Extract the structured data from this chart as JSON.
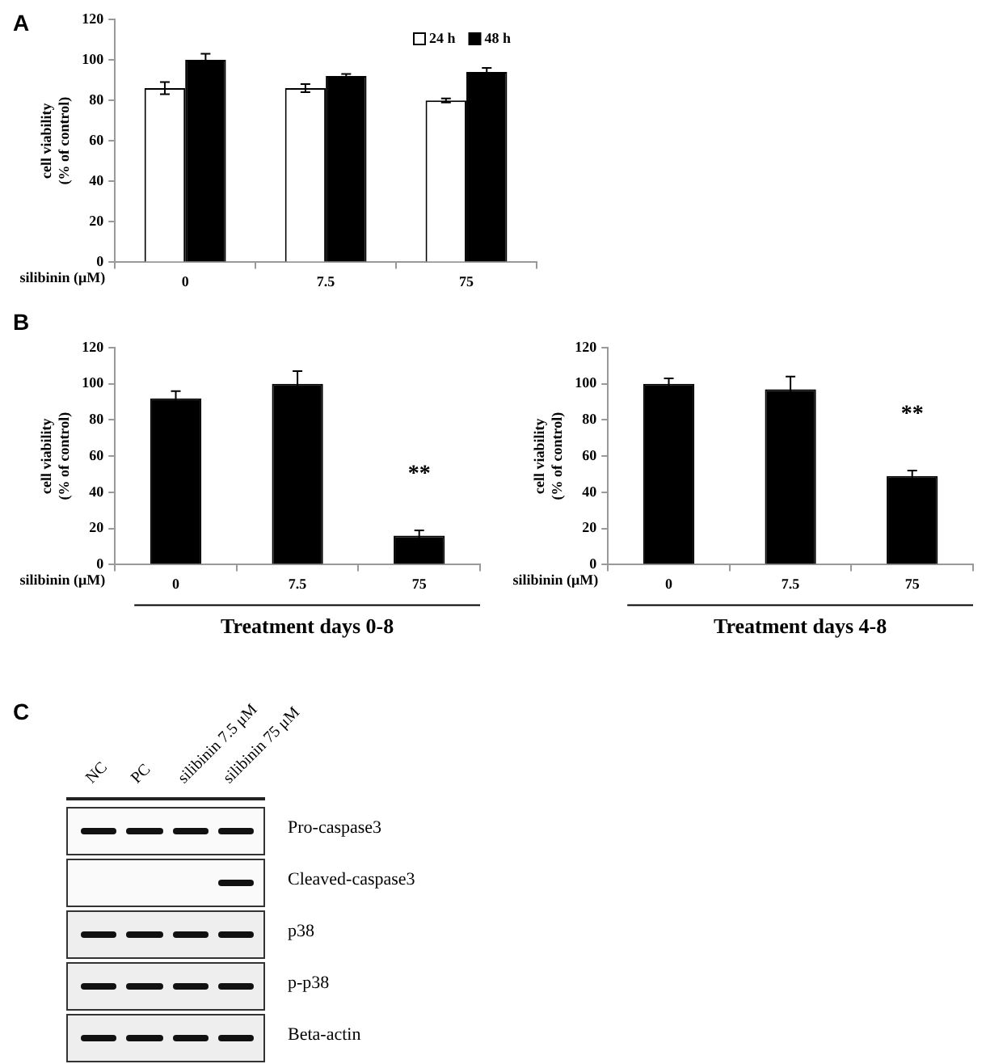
{
  "chart_data": [
    {
      "type": "bar",
      "annotations": [
        "A"
      ],
      "categories": [
        "0",
        "7.5",
        "75"
      ],
      "xlabel": "silibinin (μM)",
      "ylabel": "cell viability\n(% of control)",
      "ylim": [
        0,
        120
      ],
      "yticks": [
        0,
        20,
        40,
        60,
        80,
        100,
        120
      ],
      "legend": "top right",
      "series": [
        {
          "name": "24 h",
          "color": "#ffffff",
          "values": [
            86,
            86,
            80
          ],
          "errors": [
            3,
            2,
            1
          ]
        },
        {
          "name": "48 h",
          "color": "#000000",
          "values": [
            100,
            92,
            94
          ],
          "errors": [
            3,
            1,
            2
          ]
        }
      ]
    },
    {
      "type": "bar",
      "annotations": [
        "B",
        {
          "text": "**",
          "x": "75",
          "y": 16
        }
      ],
      "title": "Treatment days 0-8",
      "categories": [
        "0",
        "7.5",
        "75"
      ],
      "xlabel": "silibinin (μM)",
      "ylabel": "cell viability\n(% of control)",
      "ylim": [
        0,
        120
      ],
      "yticks": [
        0,
        20,
        40,
        60,
        80,
        100,
        120
      ],
      "color": "#000000",
      "values": [
        92,
        100,
        16
      ],
      "errors": [
        4,
        7,
        3
      ]
    },
    {
      "type": "bar",
      "annotations": [
        {
          "text": "**",
          "x": "75",
          "y": 49
        }
      ],
      "title": "Treatment days 4-8",
      "categories": [
        "0",
        "7.5",
        "75"
      ],
      "xlabel": "silibinin (μM)",
      "ylabel": "cell viability\n(% of control)",
      "ylim": [
        0,
        120
      ],
      "yticks": [
        0,
        20,
        40,
        60,
        80,
        100,
        120
      ],
      "color": "#000000",
      "values": [
        100,
        97,
        49
      ],
      "errors": [
        3,
        7,
        3
      ]
    },
    {
      "type": "other",
      "annotations": [
        "C"
      ],
      "categories": [
        "NC",
        "PC",
        "silibinin 7.5 μM",
        "silibinin 75 μM"
      ],
      "y_categories": [
        "Pro-caspase3",
        "Cleaved-caspase3",
        "p38",
        "p-p38",
        "Beta-actin"
      ]
    }
  ]
}
